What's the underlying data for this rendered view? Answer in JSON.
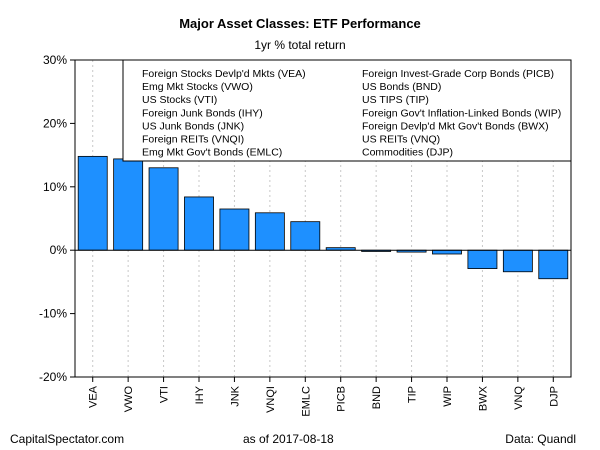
{
  "chart_data": {
    "type": "bar",
    "title": "Major Asset Classes: ETF Performance",
    "subtitle": "1yr % total return",
    "categories": [
      "VEA",
      "VWO",
      "VTI",
      "IHY",
      "JNK",
      "VNQI",
      "EMLC",
      "PICB",
      "BND",
      "TIP",
      "WIP",
      "BWX",
      "VNQ",
      "DJP"
    ],
    "values": [
      14.8,
      14.4,
      13.0,
      8.4,
      6.5,
      5.9,
      4.5,
      0.4,
      -0.2,
      -0.3,
      -0.6,
      -2.9,
      -3.4,
      -4.5
    ],
    "ylim": [
      -20,
      30
    ],
    "yticks": [
      -20,
      -10,
      0,
      10,
      20,
      30
    ],
    "ytick_labels": [
      "-20%",
      "-10%",
      "0%",
      "10%",
      "20%",
      "30%"
    ],
    "xlabel": "",
    "ylabel": "",
    "grid": "vertical dashed",
    "bar_color": "#1e90ff",
    "legend_position": "top-right",
    "legend": [
      "Foreign Stocks Devlp'd Mkts (VEA)",
      "Emg Mkt Stocks (VWO)",
      "US Stocks (VTI)",
      "Foreign Junk Bonds (IHY)",
      "US Junk Bonds (JNK)",
      "Foreign REITs (VNQI)",
      "Emg Mkt Gov't Bonds (EMLC)",
      "Foreign Invest-Grade Corp Bonds (PICB)",
      "US Bonds (BND)",
      "US TIPS (TIP)",
      "Foreign Gov't Inflation-Linked Bonds (WIP)",
      "Foreign Devlp'd Mkt Gov't Bonds (BWX)",
      "US REITs (VNQ)",
      "Commodities (DJP)"
    ]
  },
  "footer": {
    "left": "CapitalSpectator.com",
    "center": "as of   2017-08-18",
    "right": "Data: Quandl"
  }
}
